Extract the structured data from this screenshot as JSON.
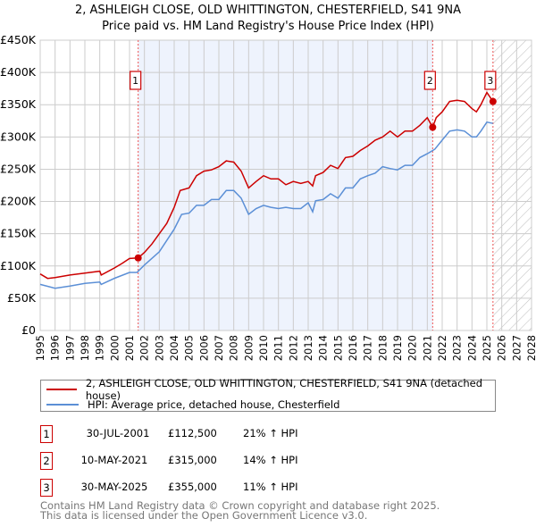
{
  "title_line1": "2, ASHLEIGH CLOSE, OLD WHITTINGTON, CHESTERFIELD, S41 9NA",
  "title_line2": "Price paid vs. HM Land Registry's House Price Index (HPI)",
  "chart_data": {
    "type": "line",
    "title": "2, ASHLEIGH CLOSE, OLD WHITTINGTON, CHESTERFIELD, S41 9NA — Price paid vs. HM Land Registry's House Price Index (HPI)",
    "xlim": [
      1995,
      2028
    ],
    "ylim": [
      0,
      450000
    ],
    "x_ticks": [
      "1995",
      "1996",
      "1997",
      "1998",
      "1999",
      "2000",
      "2001",
      "2002",
      "2003",
      "2004",
      "2005",
      "2006",
      "2007",
      "2008",
      "2009",
      "2010",
      "2011",
      "2012",
      "2013",
      "2014",
      "2015",
      "2016",
      "2017",
      "2018",
      "2019",
      "2020",
      "2021",
      "2022",
      "2023",
      "2024",
      "2025",
      "2026",
      "2027",
      "2028"
    ],
    "y_ticks": [
      {
        "v": 0,
        "label": "£0"
      },
      {
        "v": 50000,
        "label": "£50K"
      },
      {
        "v": 100000,
        "label": "£100K"
      },
      {
        "v": 150000,
        "label": "£150K"
      },
      {
        "v": 200000,
        "label": "£200K"
      },
      {
        "v": 250000,
        "label": "£250K"
      },
      {
        "v": 300000,
        "label": "£300K"
      },
      {
        "v": 350000,
        "label": "£350K"
      },
      {
        "v": 400000,
        "label": "£400K"
      },
      {
        "v": 450000,
        "label": "£450K"
      }
    ],
    "grid": true,
    "shaded_range": [
      2001.58,
      2021.36
    ],
    "forecast_hatch_from": 2025.41,
    "series": [
      {
        "name": "2, ASHLEIGH CLOSE, OLD WHITTINGTON, CHESTERFIELD, S41 9NA (detached house)",
        "color": "#cc0000",
        "x": [
          1995,
          1995.5,
          1996,
          1997,
          1998,
          1999,
          1999.1,
          2000,
          2000.5,
          2001,
          2001.58,
          2002,
          2002.5,
          2003,
          2003.5,
          2004,
          2004.4,
          2005,
          2005.5,
          2006,
          2006.5,
          2007,
          2007.5,
          2008,
          2008.5,
          2009,
          2009.5,
          2010,
          2010.5,
          2011,
          2011.5,
          2012,
          2012.5,
          2013,
          2013.3,
          2013.5,
          2014,
          2014.5,
          2015,
          2015.5,
          2016,
          2016.5,
          2017,
          2017.5,
          2018,
          2018.5,
          2019,
          2019.5,
          2020,
          2020.5,
          2021,
          2021.36,
          2021.6,
          2022,
          2022.5,
          2023,
          2023.5,
          2024,
          2024.3,
          2024.6,
          2025,
          2025.41
        ],
        "y": [
          87600,
          80700,
          82000,
          86000,
          89000,
          92000,
          86000,
          97000,
          104000,
          111600,
          112500,
          121000,
          134000,
          150000,
          166000,
          191000,
          217000,
          221000,
          240000,
          247000,
          249000,
          254000,
          263000,
          261000,
          247000,
          221000,
          231000,
          240000,
          235000,
          235000,
          226000,
          231000,
          228000,
          231000,
          224000,
          240000,
          245000,
          256000,
          251000,
          268000,
          270000,
          279000,
          286000,
          295000,
          300000,
          309000,
          300000,
          309000,
          309000,
          318000,
          330000,
          315000,
          330000,
          339000,
          355000,
          357000,
          355000,
          344000,
          339000,
          350000,
          369000,
          355000
        ]
      },
      {
        "name": "HPI: Average price, detached house, Chesterfield",
        "color": "#5b8fd6",
        "x": [
          1995,
          1996,
          1997,
          1998,
          1999,
          1999.1,
          2000,
          2001,
          2001.5,
          2002,
          2003,
          2004,
          2004.5,
          2005,
          2005.5,
          2006,
          2006.5,
          2007,
          2007.5,
          2008,
          2008.5,
          2009,
          2009.5,
          2010,
          2010.5,
          2011,
          2011.5,
          2012,
          2012.5,
          2013,
          2013.3,
          2013.5,
          2014,
          2014.5,
          2015,
          2015.5,
          2016,
          2016.5,
          2017,
          2017.5,
          2018,
          2018.5,
          2019,
          2019.5,
          2020,
          2020.5,
          2021,
          2021.5,
          2022,
          2022.5,
          2023,
          2023.5,
          2024,
          2024.3,
          2024.6,
          2025,
          2025.41
        ],
        "y": [
          71500,
          65500,
          69000,
          73000,
          75000,
          71500,
          81000,
          90000,
          90000,
          101500,
          122000,
          157000,
          180000,
          182000,
          194000,
          194000,
          203000,
          203000,
          217000,
          217000,
          205000,
          180000,
          189000,
          194000,
          191000,
          189000,
          191000,
          189000,
          189000,
          198000,
          184000,
          201000,
          203000,
          212000,
          205000,
          221000,
          221000,
          235000,
          240000,
          244000,
          254000,
          251000,
          249000,
          256000,
          256000,
          268000,
          274000,
          281000,
          295000,
          309000,
          311000,
          309000,
          300000,
          300000,
          309000,
          323000,
          321000
        ]
      }
    ],
    "sales": [
      {
        "id": "1",
        "x": 2001.58,
        "price": 112500,
        "date": "30-JUL-2001",
        "price_label": "£112,500",
        "hpi": "21% ↑ HPI"
      },
      {
        "id": "2",
        "x": 2021.36,
        "price": 315000,
        "date": "10-MAY-2021",
        "price_label": "£315,000",
        "hpi": "14% ↑ HPI"
      },
      {
        "id": "3",
        "x": 2025.41,
        "price": 355000,
        "date": "30-MAY-2025",
        "price_label": "£355,000",
        "hpi": "11% ↑ HPI"
      }
    ],
    "legend_placement": "below"
  },
  "footer_line1": "Contains HM Land Registry data © Crown copyright and database right 2025.",
  "footer_line2": "This data is licensed under the Open Government Licence v3.0."
}
